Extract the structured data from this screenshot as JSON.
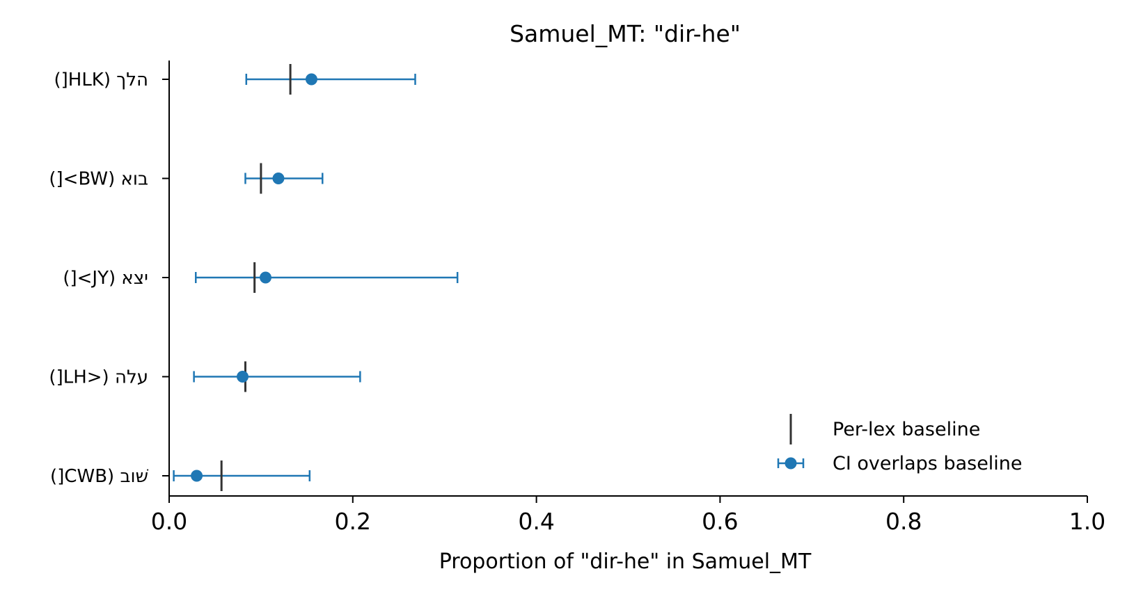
{
  "chart_data": {
    "type": "scatter",
    "title": "Samuel_MT: \"dir-he\"",
    "xlabel": "Proportion of \"dir-he\" in Samuel_MT",
    "ylabel": "",
    "xlim": [
      0,
      1
    ],
    "xticks": [
      "0.0",
      "0.2",
      "0.4",
      "0.6",
      "0.8",
      "1.0"
    ],
    "xtick_values": [
      0,
      0.2,
      0.4,
      0.6,
      0.8,
      1.0
    ],
    "categories": [
      "הלך (HLK[)",
      "בוא (BW>[)",
      "יצא (JY>[)",
      "עלה (<LH[)",
      "שׁוב (CWB[)"
    ],
    "points": [
      {
        "label": "הלך (HLK[)",
        "estimate": 0.155,
        "ci_low": 0.084,
        "ci_high": 0.268,
        "baseline": 0.132
      },
      {
        "label": "בוא (BW>[)",
        "estimate": 0.119,
        "ci_low": 0.083,
        "ci_high": 0.167,
        "baseline": 0.1
      },
      {
        "label": "יצא (JY>[)",
        "estimate": 0.105,
        "ci_low": 0.029,
        "ci_high": 0.314,
        "baseline": 0.093
      },
      {
        "label": "עלה (<LH[)",
        "estimate": 0.08,
        "ci_low": 0.027,
        "ci_high": 0.208,
        "baseline": 0.083
      },
      {
        "label": "שׁוב (CWB[)",
        "estimate": 0.03,
        "ci_low": 0.005,
        "ci_high": 0.153,
        "baseline": 0.057
      }
    ],
    "legend": {
      "position": "lower-right",
      "entries": [
        {
          "label": "Per-lex baseline",
          "marker": "vertical-line"
        },
        {
          "label": "CI overlaps baseline",
          "marker": "point-errorbar"
        }
      ]
    },
    "colors": {
      "point": "#1f77b4",
      "baseline": "#333333",
      "axis": "#000000"
    },
    "grid": false
  }
}
